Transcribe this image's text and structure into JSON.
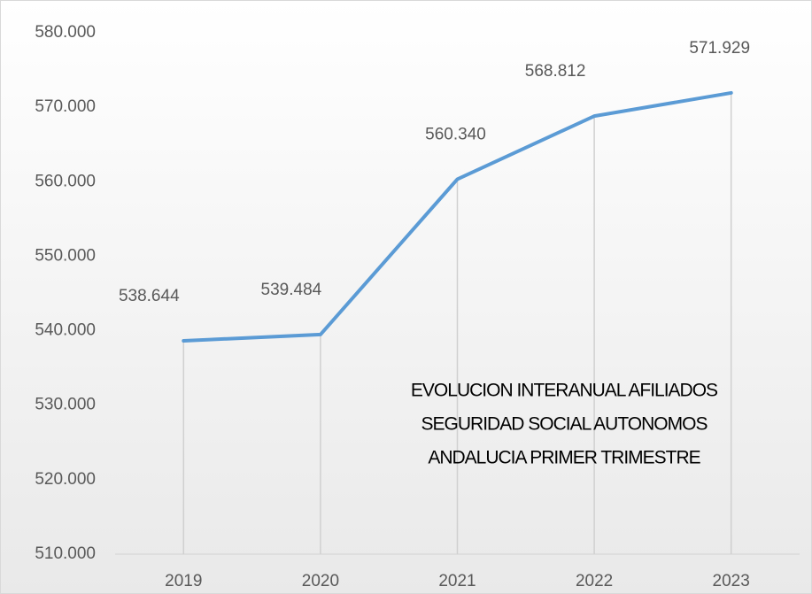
{
  "chart_data": {
    "type": "line",
    "title": [
      "EVOLUCION INTERANUAL AFILIADOS",
      "SEGURIDAD SOCIAL AUTONOMOS",
      "ANDALUCIA PRIMER TRIMESTRE"
    ],
    "categories": [
      "2019",
      "2020",
      "2021",
      "2022",
      "2023"
    ],
    "series": [
      {
        "name": null,
        "color": "#5b9bd5",
        "values": [
          538644,
          539484,
          560340,
          568812,
          571929
        ],
        "value_labels": [
          "538.644",
          "539.484",
          "560.340",
          "568.812",
          "571.929"
        ]
      }
    ],
    "ylim": [
      510000,
      580000
    ],
    "yticks": [
      {
        "value": 510000,
        "label": "510.000"
      },
      {
        "value": 520000,
        "label": "520.000"
      },
      {
        "value": 530000,
        "label": "530.000"
      },
      {
        "value": 540000,
        "label": "540.000"
      },
      {
        "value": 550000,
        "label": "550.000"
      },
      {
        "value": 560000,
        "label": "560.000"
      },
      {
        "value": 570000,
        "label": "570.000"
      },
      {
        "value": 580000,
        "label": "580.000"
      }
    ],
    "drop_lines": true
  }
}
